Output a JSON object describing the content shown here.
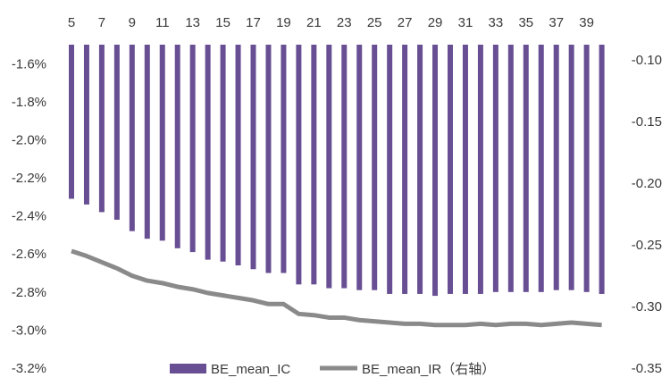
{
  "chart_data": {
    "type": "bar",
    "colors": {
      "bar": "#684f93",
      "line": "#8a8a8a"
    },
    "x": [
      5,
      6,
      7,
      8,
      9,
      10,
      11,
      12,
      13,
      14,
      15,
      16,
      17,
      18,
      19,
      20,
      21,
      22,
      23,
      24,
      25,
      26,
      27,
      28,
      29,
      30,
      31,
      32,
      33,
      34,
      35,
      36,
      37,
      38,
      39,
      40
    ],
    "x_tick_labels": [
      "5",
      "7",
      "9",
      "11",
      "13",
      "15",
      "17",
      "19",
      "21",
      "23",
      "25",
      "27",
      "29",
      "31",
      "33",
      "35",
      "37",
      "39"
    ],
    "y_left": {
      "ylim": [
        -3.2,
        -1.5
      ],
      "ticks": [
        "-1.6%",
        "-1.8%",
        "-2.0%",
        "-2.2%",
        "-2.4%",
        "-2.6%",
        "-2.8%",
        "-3.0%",
        "-3.2%"
      ]
    },
    "y_right": {
      "ylim": [
        -0.35,
        -0.0875
      ],
      "ticks": [
        "-0.10",
        "-0.15",
        "-0.20",
        "-0.25",
        "-0.30",
        "-0.35"
      ]
    },
    "series": [
      {
        "name": "BE_mean_IC",
        "axis": "left",
        "type": "bar",
        "unit": "%",
        "values": [
          -2.31,
          -2.34,
          -2.38,
          -2.42,
          -2.48,
          -2.52,
          -2.53,
          -2.57,
          -2.59,
          -2.63,
          -2.64,
          -2.66,
          -2.68,
          -2.7,
          -2.7,
          -2.76,
          -2.76,
          -2.78,
          -2.78,
          -2.79,
          -2.79,
          -2.81,
          -2.81,
          -2.81,
          -2.82,
          -2.81,
          -2.81,
          -2.81,
          -2.8,
          -2.8,
          -2.8,
          -2.8,
          -2.79,
          -2.79,
          -2.8,
          -2.81
        ]
      },
      {
        "name": "BE_mean_IR（右轴）",
        "axis": "right",
        "type": "line",
        "values": [
          -0.255,
          -0.259,
          -0.264,
          -0.269,
          -0.275,
          -0.279,
          -0.281,
          -0.284,
          -0.286,
          -0.289,
          -0.291,
          -0.293,
          -0.295,
          -0.298,
          -0.298,
          -0.306,
          -0.307,
          -0.309,
          -0.309,
          -0.311,
          -0.312,
          -0.313,
          -0.314,
          -0.314,
          -0.315,
          -0.315,
          -0.315,
          -0.314,
          -0.315,
          -0.314,
          -0.314,
          -0.315,
          -0.314,
          -0.313,
          -0.314,
          -0.315
        ]
      }
    ],
    "legend": {
      "placement": "bottom-center"
    }
  }
}
